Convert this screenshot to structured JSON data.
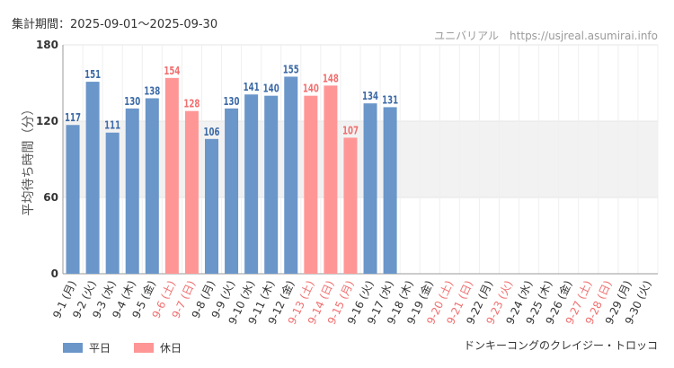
{
  "period_label": "集計期間：2025-09-01～2025-09-30",
  "credit": "ユニバリアル　https://usjreal.asumirai.info",
  "attraction": "ドンキーコングのクレイジー・トロッコ",
  "legend": {
    "weekday": {
      "label": "平日",
      "color": "#6a96c9"
    },
    "holiday": {
      "label": "休日",
      "color": "#ff9696"
    }
  },
  "colors": {
    "weekday_label": "#3c6aa6",
    "holiday_label": "#f07070",
    "band": "#f2f2f2",
    "grid": "#e6e6e6",
    "axis_text": "#333333"
  },
  "chart_data": {
    "type": "bar",
    "ylabel": "平均待ち時間（分）",
    "ylim": [
      0,
      180
    ],
    "yticks": [
      0,
      60,
      120,
      180
    ],
    "shaded_band": [
      60,
      120
    ],
    "categories": [
      "9-1 (月)",
      "9-2 (火)",
      "9-3 (水)",
      "9-4 (木)",
      "9-5 (金)",
      "9-6 (土)",
      "9-7 (日)",
      "9-8 (月)",
      "9-9 (火)",
      "9-10 (水)",
      "9-11 (木)",
      "9-12 (金)",
      "9-13 (土)",
      "9-14 (日)",
      "9-15 (月)",
      "9-16 (火)",
      "9-17 (水)",
      "9-18 (木)",
      "9-19 (金)",
      "9-20 (土)",
      "9-21 (日)",
      "9-22 (月)",
      "9-23 (火)",
      "9-24 (水)",
      "9-25 (木)",
      "9-26 (金)",
      "9-27 (土)",
      "9-28 (日)",
      "9-29 (月)",
      "9-30 (火)"
    ],
    "day_type": [
      "weekday",
      "weekday",
      "weekday",
      "weekday",
      "weekday",
      "holiday",
      "holiday",
      "weekday",
      "weekday",
      "weekday",
      "weekday",
      "weekday",
      "holiday",
      "holiday",
      "holiday",
      "weekday",
      "weekday",
      "weekday",
      "weekday",
      "holiday",
      "holiday",
      "weekday",
      "holiday",
      "weekday",
      "weekday",
      "weekday",
      "holiday",
      "holiday",
      "weekday",
      "weekday"
    ],
    "values": [
      117,
      151,
      111,
      130,
      138,
      154,
      128,
      106,
      130,
      141,
      140,
      155,
      140,
      148,
      107,
      134,
      131,
      null,
      null,
      null,
      null,
      null,
      null,
      null,
      null,
      null,
      null,
      null,
      null,
      null
    ]
  }
}
